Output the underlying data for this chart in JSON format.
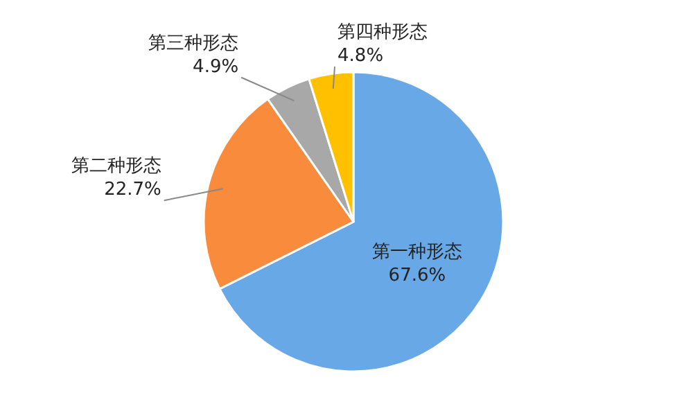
{
  "chart_data": {
    "type": "pie",
    "categories": [
      "第一种形态",
      "第二种形态",
      "第三种形态",
      "第四种形态"
    ],
    "values": [
      67.6,
      22.7,
      4.9,
      4.8
    ],
    "value_labels": [
      "67.6%",
      "22.7%",
      "4.9%",
      "4.8%"
    ],
    "colors": [
      "#68a8e6",
      "#f98b3c",
      "#a8a8a8",
      "#ffc000"
    ]
  }
}
